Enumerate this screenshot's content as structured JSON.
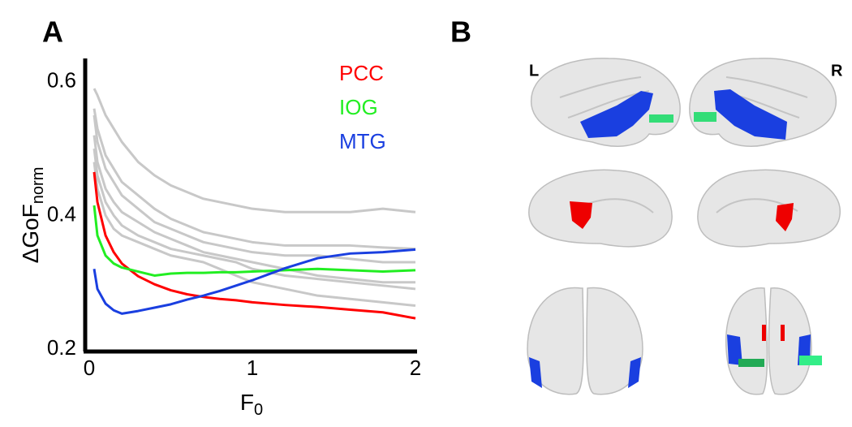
{
  "chart_data": {
    "type": "line",
    "panel_label": "A",
    "xlabel": "F",
    "xlabel_subscript": "0",
    "ylabel": "ΔGoF",
    "ylabel_subscript": "norm",
    "x": [
      0.03,
      0.05,
      0.1,
      0.15,
      0.2,
      0.3,
      0.4,
      0.5,
      0.6,
      0.7,
      0.8,
      0.9,
      1.0,
      1.2,
      1.4,
      1.6,
      1.8,
      2.0
    ],
    "xlim": [
      0,
      2
    ],
    "xticks": [
      0,
      1,
      2
    ],
    "ylim": [
      0.2,
      0.635
    ],
    "yticks": [
      0.2,
      0.4,
      0.6
    ],
    "series": [
      {
        "color": "#c8c8c8",
        "values": [
          0.59,
          0.58,
          0.55,
          0.53,
          0.51,
          0.48,
          0.46,
          0.445,
          0.435,
          0.425,
          0.42,
          0.415,
          0.41,
          0.405,
          0.405,
          0.405,
          0.41,
          0.405
        ]
      },
      {
        "color": "#c8c8c8",
        "values": [
          0.56,
          0.53,
          0.49,
          0.47,
          0.45,
          0.43,
          0.41,
          0.395,
          0.385,
          0.375,
          0.37,
          0.365,
          0.36,
          0.355,
          0.355,
          0.355,
          0.352,
          0.35
        ]
      },
      {
        "color": "#c8c8c8",
        "values": [
          0.55,
          0.51,
          0.47,
          0.45,
          0.43,
          0.41,
          0.39,
          0.38,
          0.37,
          0.36,
          0.355,
          0.35,
          0.345,
          0.34,
          0.34,
          0.335,
          0.33,
          0.33
        ]
      },
      {
        "color": "#c8c8c8",
        "values": [
          0.52,
          0.48,
          0.44,
          0.42,
          0.405,
          0.39,
          0.375,
          0.365,
          0.355,
          0.345,
          0.34,
          0.335,
          0.33,
          0.32,
          0.31,
          0.305,
          0.3,
          0.3
        ]
      },
      {
        "color": "#c8c8c8",
        "values": [
          0.5,
          0.46,
          0.42,
          0.4,
          0.385,
          0.37,
          0.36,
          0.35,
          0.345,
          0.34,
          0.335,
          0.33,
          0.32,
          0.31,
          0.305,
          0.3,
          0.295,
          0.29
        ]
      },
      {
        "color": "#c8c8c8",
        "values": [
          0.48,
          0.44,
          0.4,
          0.38,
          0.37,
          0.36,
          0.35,
          0.34,
          0.335,
          0.33,
          0.32,
          0.31,
          0.3,
          0.29,
          0.28,
          0.275,
          0.27,
          0.265
        ]
      },
      {
        "name": "PCC",
        "color": "#ff0000",
        "values": [
          0.465,
          0.42,
          0.37,
          0.345,
          0.328,
          0.309,
          0.297,
          0.288,
          0.282,
          0.278,
          0.275,
          0.273,
          0.27,
          0.266,
          0.263,
          0.259,
          0.255,
          0.246
        ]
      },
      {
        "name": "IOG",
        "color": "#22ee22",
        "values": [
          0.415,
          0.37,
          0.34,
          0.328,
          0.322,
          0.316,
          0.31,
          0.313,
          0.314,
          0.314,
          0.315,
          0.315,
          0.316,
          0.318,
          0.32,
          0.318,
          0.316,
          0.318
        ]
      },
      {
        "name": "MTG",
        "color": "#1a3fe0",
        "values": [
          0.32,
          0.29,
          0.268,
          0.258,
          0.253,
          0.257,
          0.262,
          0.267,
          0.274,
          0.28,
          0.287,
          0.295,
          0.303,
          0.321,
          0.336,
          0.343,
          0.345,
          0.349
        ]
      }
    ]
  },
  "brain_panel": {
    "panel_label": "B",
    "left_label": "L",
    "right_label": "R"
  }
}
